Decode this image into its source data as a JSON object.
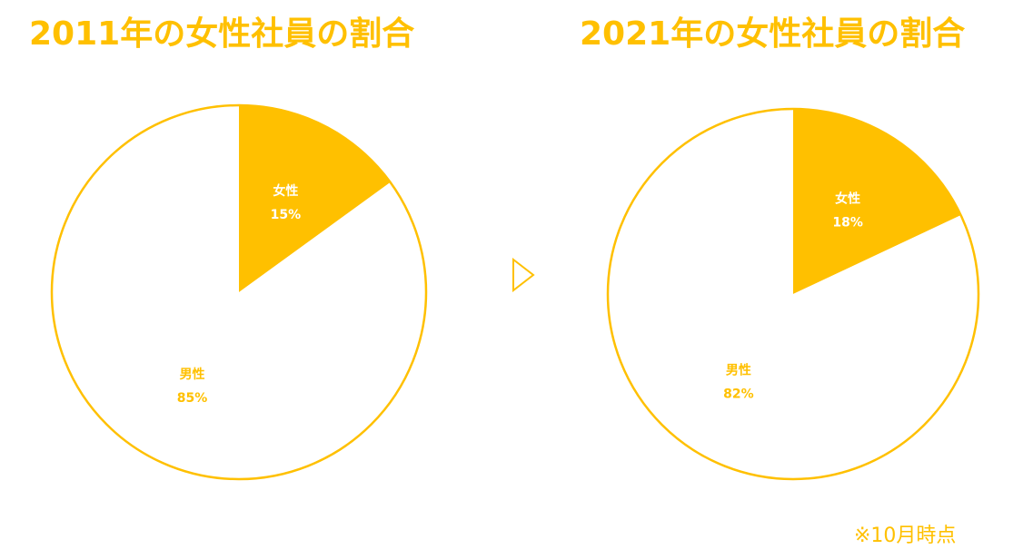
{
  "chart_data": [
    {
      "type": "pie",
      "title": "2011年の女性社員の割合",
      "slices": [
        {
          "label": "女性",
          "value": 15,
          "value_label": "15%",
          "color": "#FFC000"
        },
        {
          "label": "男性",
          "value": 85,
          "value_label": "85%",
          "color": "#FFFFFF"
        }
      ],
      "start_angle": "12 o'clock",
      "direction": "clockwise",
      "outline_color": "#FFC000"
    },
    {
      "type": "pie",
      "title": "2021年の女性社員の割合",
      "slices": [
        {
          "label": "女性",
          "value": 18,
          "value_label": "18%",
          "color": "#FFC000"
        },
        {
          "label": "男性",
          "value": 82,
          "value_label": "82%",
          "color": "#FFFFFF"
        }
      ],
      "start_angle": "12 o'clock",
      "direction": "clockwise",
      "outline_color": "#FFC000"
    }
  ],
  "arrow_icon": "triangle-right-outline-icon",
  "footnote": "※10月時点",
  "colors": {
    "accent": "#FFC000",
    "label_on_accent": "#FFFFFF",
    "background": "#FFFFFF"
  }
}
